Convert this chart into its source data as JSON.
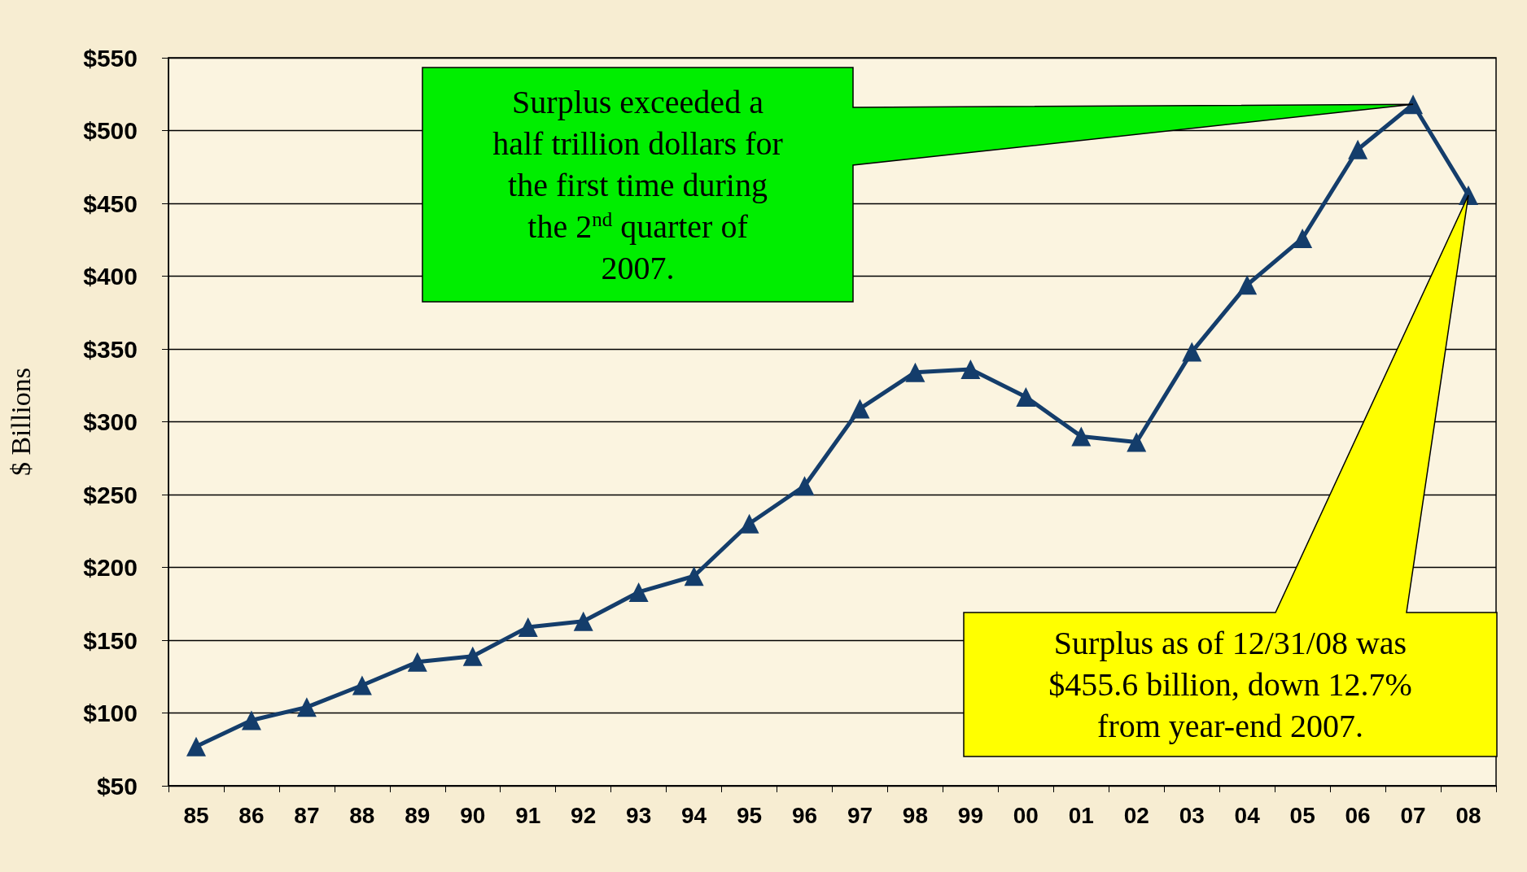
{
  "chart_data": {
    "type": "line",
    "ylabel": "$ Billions",
    "categories": [
      "85",
      "86",
      "87",
      "88",
      "89",
      "90",
      "91",
      "92",
      "93",
      "94",
      "95",
      "96",
      "97",
      "98",
      "99",
      "00",
      "01",
      "02",
      "03",
      "04",
      "05",
      "06",
      "07",
      "08"
    ],
    "series": [
      {
        "color": "#143d6b",
        "values": [
          77,
          95,
          104,
          119,
          135,
          139,
          159,
          163,
          183,
          194,
          230,
          256,
          309,
          334,
          336,
          317,
          290,
          286,
          348,
          394,
          426,
          487,
          518,
          455.6
        ]
      }
    ],
    "ylim": [
      50,
      550
    ],
    "yticks": [
      {
        "value": 50,
        "label": "$50"
      },
      {
        "value": 100,
        "label": "$100"
      },
      {
        "value": 150,
        "label": "$150"
      },
      {
        "value": 200,
        "label": "$200"
      },
      {
        "value": 250,
        "label": "$250"
      },
      {
        "value": 300,
        "label": "$300"
      },
      {
        "value": 350,
        "label": "$350"
      },
      {
        "value": 400,
        "label": "$400"
      },
      {
        "value": 450,
        "label": "$450"
      },
      {
        "value": 500,
        "label": "$500"
      },
      {
        "value": 550,
        "label": "$550"
      }
    ],
    "grid": "y",
    "marker": "triangle",
    "line_style": "solid",
    "annotations": [
      "Surplus exceeded a\nhalf trillion dollars for\nthe first time during\nthe 2$^{nd}$ quarter of\n2007.",
      "Surplus as of 12/31/08 was\n$455.6 billion, down 12.7%\nfrom year-end 2007."
    ]
  }
}
